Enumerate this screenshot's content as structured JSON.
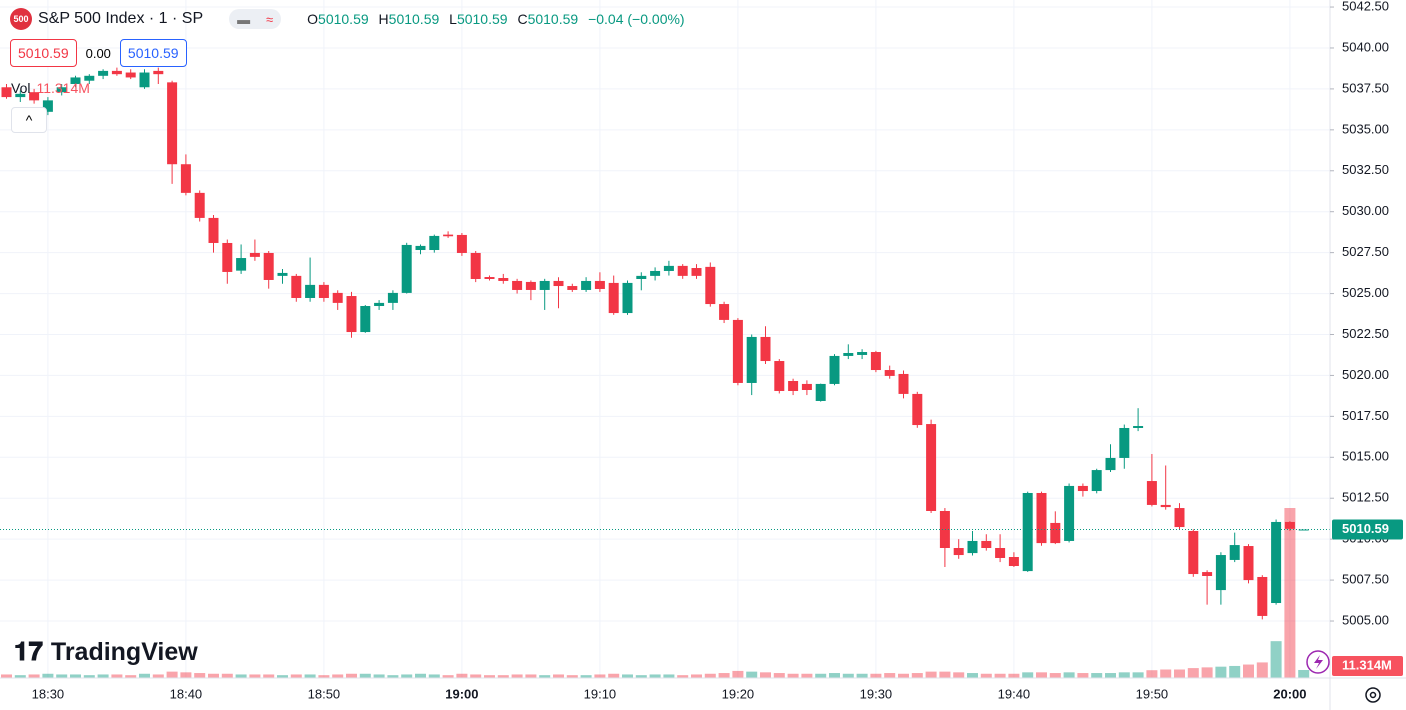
{
  "header": {
    "badge": "500",
    "symbol": "S&P 500 Index · 1 · SP",
    "change": "−0.04 (−0.00%)",
    "bid": 5010.59,
    "spread": "0.00",
    "ask": 5010.59,
    "vol_title": "Vol",
    "brand": "TradingView"
  },
  "chart_data": {
    "type": "candlestick",
    "up_color": "#089981",
    "down_color": "#f23645",
    "categories": [
      null,
      null,
      null,
      "18:30",
      null,
      null,
      null,
      null,
      null,
      null,
      null,
      null,
      null,
      "18:40",
      null,
      null,
      null,
      null,
      null,
      null,
      null,
      null,
      null,
      "18:50",
      null,
      null,
      null,
      null,
      null,
      null,
      null,
      null,
      null,
      "19:00",
      null,
      null,
      null,
      null,
      null,
      null,
      null,
      null,
      null,
      "19:10",
      null,
      null,
      null,
      null,
      null,
      null,
      null,
      null,
      null,
      "19:20",
      null,
      null,
      null,
      null,
      null,
      null,
      null,
      null,
      null,
      "19:30",
      null,
      null,
      null,
      null,
      null,
      null,
      null,
      null,
      null,
      "19:40",
      null,
      null,
      null,
      null,
      null,
      null,
      null,
      null,
      null,
      "19:50",
      null,
      null,
      null,
      null,
      null,
      null,
      null,
      null,
      null,
      "20:00",
      null
    ],
    "open": [
      5037.6,
      5037.0,
      5037.3,
      5036.1,
      5037.3,
      5037.8,
      5038.0,
      5038.3,
      5038.6,
      5038.5,
      5037.6,
      5038.6,
      5037.9,
      5032.9,
      5031.15,
      5029.62,
      5028.09,
      5026.4,
      5027.48,
      5027.48,
      5026.08,
      5026.08,
      5024.73,
      5025.53,
      5025.04,
      5024.85,
      5022.65,
      5024.24,
      5024.43,
      5025.04,
      5027.66,
      5027.66,
      5028.6,
      5028.58,
      5027.48,
      5026.01,
      5025.95,
      5025.77,
      5025.71,
      5025.22,
      5025.77,
      5025.46,
      5025.22,
      5025.77,
      5025.65,
      5023.81,
      5025.89,
      5026.08,
      5026.38,
      5026.69,
      5026.56,
      5026.63,
      5024.36,
      5023.39,
      5019.54,
      5022.35,
      5020.88,
      5019.66,
      5019.48,
      5018.44,
      5019.48,
      5021.19,
      5021.25,
      5021.43,
      5020.33,
      5020.09,
      5018.87,
      5017.03,
      5011.72,
      5009.46,
      5009.15,
      5009.89,
      5009.46,
      5008.91,
      5008.05,
      5012.82,
      5010.99,
      5009.89,
      5013.25,
      5012.94,
      5014.22,
      5014.96,
      5016.79,
      5013.55,
      5012.09,
      5011.9,
      5010.5,
      5007.99,
      5006.89,
      5008.73,
      5009.58,
      5007.69,
      5006.1,
      5011.05,
      5010.59
    ],
    "high": [
      5037.8,
      5037.4,
      5037.5,
      5037.0,
      5037.8,
      5038.3,
      5038.4,
      5038.7,
      5038.8,
      5038.7,
      5038.7,
      5038.8,
      5038.0,
      5033.5,
      5031.3,
      5029.8,
      5028.3,
      5028.0,
      5028.3,
      5027.6,
      5026.5,
      5026.2,
      5027.2,
      5025.7,
      5025.2,
      5025.1,
      5024.3,
      5024.6,
      5025.2,
      5028.1,
      5028.0,
      5028.6,
      5028.8,
      5028.7,
      5027.6,
      5026.1,
      5026.2,
      5025.9,
      5025.8,
      5025.9,
      5026.0,
      5025.6,
      5026.0,
      5026.3,
      5026.1,
      5025.8,
      5026.3,
      5026.6,
      5027.0,
      5026.8,
      5026.8,
      5026.9,
      5024.5,
      5023.5,
      5022.5,
      5023.0,
      5021.0,
      5019.8,
      5019.7,
      5019.5,
      5021.3,
      5021.9,
      5021.6,
      5021.5,
      5020.6,
      5020.3,
      5019.0,
      5017.3,
      5011.9,
      5010.0,
      5010.5,
      5010.3,
      5010.3,
      5009.2,
      5012.9,
      5012.9,
      5011.7,
      5013.4,
      5013.4,
      5014.3,
      5015.8,
      5017.0,
      5018.0,
      5015.2,
      5014.5,
      5012.2,
      5010.6,
      5008.1,
      5009.2,
      5010.4,
      5009.7,
      5007.8,
      5011.2,
      5011.1,
      5010.59
    ],
    "low": [
      5036.9,
      5036.7,
      5036.6,
      5035.9,
      5037.1,
      5037.6,
      5037.8,
      5038.1,
      5038.3,
      5038.1,
      5037.5,
      5037.8,
      5031.7,
      5031.0,
      5029.4,
      5027.5,
      5025.6,
      5026.2,
      5027.0,
      5025.3,
      5025.6,
      5024.5,
      5024.5,
      5024.5,
      5024.0,
      5022.3,
      5022.6,
      5024.0,
      5024.0,
      5025.0,
      5027.4,
      5027.5,
      5028.4,
      5027.3,
      5025.7,
      5025.8,
      5025.6,
      5025.0,
      5024.6,
      5024.0,
      5024.1,
      5025.1,
      5025.1,
      5025.1,
      5023.7,
      5023.7,
      5025.2,
      5025.8,
      5026.1,
      5025.9,
      5025.9,
      5024.2,
      5023.2,
      5019.4,
      5018.8,
      5020.7,
      5018.9,
      5018.8,
      5018.8,
      5018.4,
      5019.4,
      5021.0,
      5021.0,
      5020.2,
      5019.8,
      5018.6,
      5016.8,
      5011.6,
      5008.3,
      5008.8,
      5009.0,
      5009.3,
      5008.6,
      5008.3,
      5008.0,
      5009.6,
      5009.7,
      5009.8,
      5012.6,
      5012.8,
      5014.1,
      5014.3,
      5016.6,
      5012.0,
      5011.8,
      5010.6,
      5007.7,
      5006.0,
      5006.0,
      5008.6,
      5007.3,
      5005.1,
      5006.0,
      5010.5,
      5010.59
    ],
    "close": [
      5037.0,
      5037.2,
      5036.8,
      5036.8,
      5037.6,
      5038.2,
      5038.3,
      5038.6,
      5038.4,
      5038.2,
      5038.5,
      5038.4,
      5032.9,
      5031.15,
      5029.62,
      5028.09,
      5026.32,
      5027.17,
      5027.24,
      5025.83,
      5026.26,
      5024.73,
      5025.53,
      5024.73,
      5024.43,
      5022.65,
      5024.24,
      5024.43,
      5025.04,
      5027.97,
      5027.91,
      5028.52,
      5028.5,
      5027.48,
      5025.89,
      5025.89,
      5025.77,
      5025.22,
      5025.22,
      5025.77,
      5025.46,
      5025.22,
      5025.77,
      5025.28,
      5023.81,
      5025.65,
      5026.08,
      5026.38,
      5026.69,
      5026.08,
      5026.08,
      5024.36,
      5023.39,
      5019.54,
      5022.35,
      5020.88,
      5019.05,
      5019.05,
      5019.11,
      5019.48,
      5021.19,
      5021.37,
      5021.43,
      5020.33,
      5019.97,
      5018.87,
      5016.97,
      5011.72,
      5009.46,
      5009.03,
      5009.89,
      5009.46,
      5008.85,
      5008.36,
      5012.82,
      5009.76,
      5009.76,
      5013.25,
      5012.94,
      5014.22,
      5014.96,
      5016.79,
      5016.91,
      5012.09,
      5011.96,
      5010.74,
      5007.87,
      5007.75,
      5009.03,
      5009.64,
      5007.5,
      5005.31,
      5011.05,
      5010.63,
      5010.59
    ],
    "ylim": [
      5001.52,
      5042.93
    ],
    "yticks": [
      {
        "value": 5005,
        "label": "5005.00"
      },
      {
        "value": 5007.5,
        "label": "5007.50"
      },
      {
        "value": 5010,
        "label": "5010.00"
      },
      {
        "value": 5012.5,
        "label": "5012.50"
      },
      {
        "value": 5015,
        "label": "5015.00"
      },
      {
        "value": 5017.5,
        "label": "5017.50"
      },
      {
        "value": 5020,
        "label": "5020.00"
      },
      {
        "value": 5022.5,
        "label": "5022.50"
      },
      {
        "value": 5025,
        "label": "5025.00"
      },
      {
        "value": 5027.5,
        "label": "5027.50"
      },
      {
        "value": 5030,
        "label": "5030.00"
      },
      {
        "value": 5032.5,
        "label": "5032.50"
      },
      {
        "value": 5035,
        "label": "5035.00"
      },
      {
        "value": 5037.5,
        "label": "5037.50"
      },
      {
        "value": 5040,
        "label": "5040.00"
      },
      {
        "value": 5042.5,
        "label": "5042.50"
      }
    ],
    "grid": true,
    "last_price": 5010.59,
    "volume": {
      "values": [
        5,
        4,
        5,
        6,
        5,
        5,
        4,
        5,
        5,
        4,
        6,
        5,
        9,
        8,
        7,
        6,
        6,
        5,
        5,
        5,
        4,
        5,
        5,
        4,
        5,
        6,
        6,
        5,
        4,
        5,
        6,
        5,
        4,
        6,
        5,
        4,
        4,
        5,
        5,
        4,
        5,
        4,
        4,
        5,
        6,
        5,
        4,
        5,
        5,
        4,
        5,
        6,
        7,
        10,
        9,
        8,
        7,
        6,
        6,
        6,
        7,
        6,
        6,
        6,
        7,
        6,
        7,
        9,
        9,
        8,
        7,
        6,
        6,
        6,
        8,
        8,
        7,
        8,
        7,
        7,
        7,
        8,
        8,
        11,
        12,
        12,
        14,
        15,
        16,
        17,
        19,
        22,
        52,
        240,
        11.314
      ],
      "ylim": [
        0,
        600
      ],
      "last_label": "11.314M"
    }
  }
}
